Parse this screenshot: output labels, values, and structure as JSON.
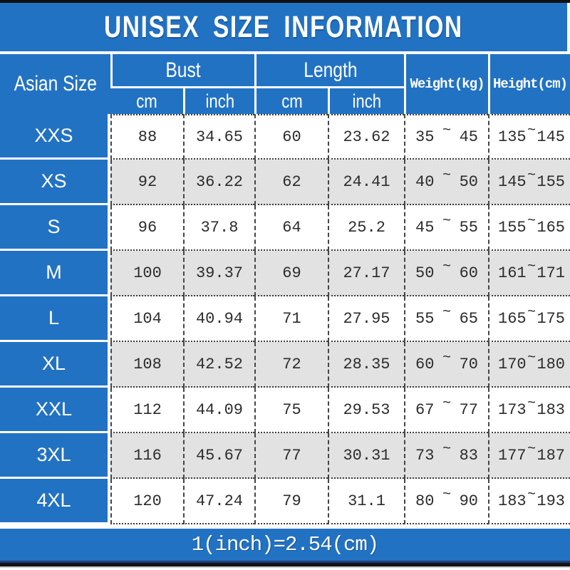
{
  "title": "UNISEX SIZE INFORMATION",
  "header": {
    "size_col": "Asian Size",
    "bust": "Bust",
    "length": "Length",
    "weight": "Weight(kg)",
    "height": "Height(cm)",
    "bust_cm": "cm",
    "bust_inch": "inch",
    "length_cm": "cm",
    "length_inch": "inch",
    "tilde": "~"
  },
  "rows": [
    {
      "size": "XXS",
      "bust_cm": "88",
      "bust_inch": "34.65",
      "length_cm": "60",
      "length_inch": "23.62",
      "weight_min": "35",
      "weight_max": "45",
      "height_min": "135",
      "height_max": "145"
    },
    {
      "size": "XS",
      "bust_cm": "92",
      "bust_inch": "36.22",
      "length_cm": "62",
      "length_inch": "24.41",
      "weight_min": "40",
      "weight_max": "50",
      "height_min": "145",
      "height_max": "155"
    },
    {
      "size": "S",
      "bust_cm": "96",
      "bust_inch": "37.8",
      "length_cm": "64",
      "length_inch": "25.2",
      "weight_min": "45",
      "weight_max": "55",
      "height_min": "155",
      "height_max": "165"
    },
    {
      "size": "M",
      "bust_cm": "100",
      "bust_inch": "39.37",
      "length_cm": "69",
      "length_inch": "27.17",
      "weight_min": "50",
      "weight_max": "60",
      "height_min": "161",
      "height_max": "171"
    },
    {
      "size": "L",
      "bust_cm": "104",
      "bust_inch": "40.94",
      "length_cm": "71",
      "length_inch": "27.95",
      "weight_min": "55",
      "weight_max": "65",
      "height_min": "165",
      "height_max": "175"
    },
    {
      "size": "XL",
      "bust_cm": "108",
      "bust_inch": "42.52",
      "length_cm": "72",
      "length_inch": "28.35",
      "weight_min": "60",
      "weight_max": "70",
      "height_min": "170",
      "height_max": "180"
    },
    {
      "size": "XXL",
      "bust_cm": "112",
      "bust_inch": "44.09",
      "length_cm": "75",
      "length_inch": "29.53",
      "weight_min": "67",
      "weight_max": "77",
      "height_min": "173",
      "height_max": "183"
    },
    {
      "size": "3XL",
      "bust_cm": "116",
      "bust_inch": "45.67",
      "length_cm": "77",
      "length_inch": "30.31",
      "weight_min": "73",
      "weight_max": "83",
      "height_min": "177",
      "height_max": "187"
    },
    {
      "size": "4XL",
      "bust_cm": "120",
      "bust_inch": "47.24",
      "length_cm": "79",
      "length_inch": "31.1",
      "weight_min": "80",
      "weight_max": "90",
      "height_min": "183",
      "height_max": "193"
    }
  ],
  "footer_note": "1(inch)=2.54(cm)",
  "colors": {
    "accent_blue": "#2272c4",
    "row_alt_gray": "#e3e2e2",
    "grid_line": "#3d3d3d",
    "text_dark": "#2c2c2c",
    "text_white": "#ffffff"
  },
  "chart_data": {
    "type": "table",
    "title": "UNISEX SIZE INFORMATION",
    "columns": [
      "Asian Size",
      "Bust cm",
      "Bust inch",
      "Length cm",
      "Length inch",
      "Weight(kg)",
      "Height(cm)"
    ],
    "rows": [
      [
        "XXS",
        88,
        34.65,
        60,
        23.62,
        "35~45",
        "135~145"
      ],
      [
        "XS",
        92,
        36.22,
        62,
        24.41,
        "40~50",
        "145~155"
      ],
      [
        "S",
        96,
        37.8,
        64,
        25.2,
        "45~55",
        "155~165"
      ],
      [
        "M",
        100,
        39.37,
        69,
        27.17,
        "50~60",
        "161~171"
      ],
      [
        "L",
        104,
        40.94,
        71,
        27.95,
        "55~65",
        "165~175"
      ],
      [
        "XL",
        108,
        42.52,
        72,
        28.35,
        "60~70",
        "170~180"
      ],
      [
        "XXL",
        112,
        44.09,
        75,
        29.53,
        "67~77",
        "173~183"
      ],
      [
        "3XL",
        116,
        45.67,
        77,
        30.31,
        "73~83",
        "177~187"
      ],
      [
        "4XL",
        120,
        47.24,
        79,
        31.1,
        "80~90",
        "183~193"
      ]
    ],
    "note": "1(inch)=2.54(cm)"
  }
}
